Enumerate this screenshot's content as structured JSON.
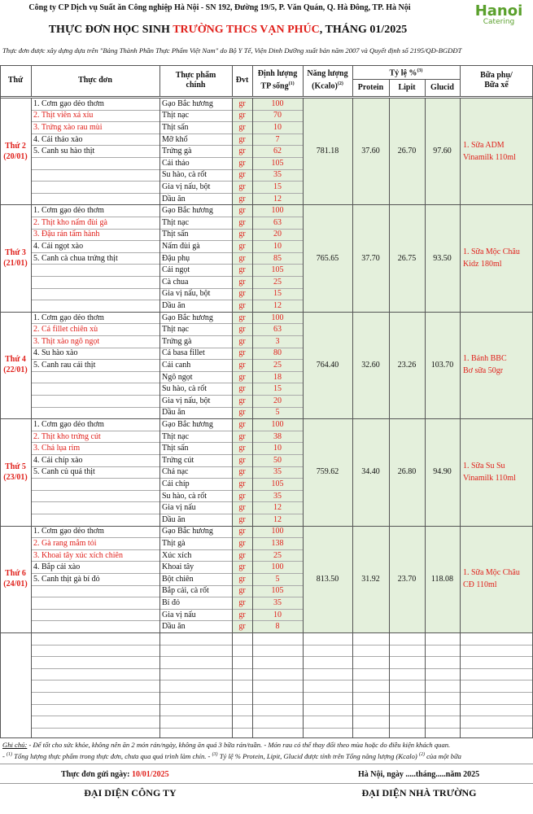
{
  "header": {
    "company": "Công ty CP Dịch vụ Suất ăn Công nghiệp Hà Nội - SN 192, Đường 19/5, P. Văn Quán, Q. Hà Đông, TP. Hà Nội",
    "logo_main": "Hanoi",
    "logo_sub": "Catering",
    "title_prefix": "THỰC ĐƠN HỌC SINH ",
    "school": "TRƯỜNG THCS VẠN PHÚC",
    "title_suffix": ", THÁNG 01/2025",
    "basis": "Thực đơn được xây dựng dựa trên \"Bảng Thành Phần Thực Phẩm Việt Nam\" do Bộ Y Tế, Viện Dinh Dưỡng xuất bản năm 2007 và Quyết định số 2195/QĐ-BGDĐT"
  },
  "highlight_color": "#e0201b",
  "table": {
    "columns": {
      "day": "Thứ",
      "menu": "Thực đơn",
      "food": [
        "Thực phẩm",
        "chính"
      ],
      "unit": "Đvt",
      "qty": {
        "text": [
          "Định lượng",
          "TP sống"
        ],
        "sup": "(1)"
      },
      "energy": {
        "text": [
          "Năng lượng",
          "(Kcalo)"
        ],
        "sup": "(2)"
      },
      "ratio": {
        "text": "Tỷ lệ %",
        "sup": "(3)"
      },
      "protein": "Protein",
      "lipit": "Lipit",
      "glucid": "Glucid",
      "snack": [
        "Bữa phụ/",
        "Bữa xế"
      ]
    },
    "days": [
      {
        "day": "Thứ 2",
        "date": "(20/01)",
        "dishes": [
          {
            "text": "1. Cơm gạo dẻo thơm",
            "highlight": false
          },
          {
            "text": "2. Thịt viên xá xíu",
            "highlight": true
          },
          {
            "text": "3. Trứng xào rau mùi",
            "highlight": true
          },
          {
            "text": "4. Cải thảo xào",
            "highlight": false
          },
          {
            "text": "5. Canh su hào thịt",
            "highlight": false
          }
        ],
        "ingredients": [
          [
            "Gạo Bắc hương",
            "gr",
            100
          ],
          [
            "Thịt nạc",
            "gr",
            70
          ],
          [
            "Thịt sấn",
            "gr",
            10
          ],
          [
            "Mỡ khổ",
            "gr",
            7
          ],
          [
            "Trứng gà",
            "gr",
            62
          ],
          [
            "Cải thảo",
            "gr",
            105
          ],
          [
            "Su hào, cà rốt",
            "gr",
            35
          ],
          [
            "Gia vị nấu, bột",
            "gr",
            15
          ],
          [
            "Dầu ăn",
            "gr",
            12
          ]
        ],
        "energy": "781.18",
        "protein": "37.60",
        "lipit": "26.70",
        "glucid": "97.60",
        "snack": [
          "1. Sữa ADM",
          "Vinamilk 110ml"
        ]
      },
      {
        "day": "Thứ 3",
        "date": "(21/01)",
        "dishes": [
          {
            "text": "1. Cơm gạo dẻo thơm",
            "highlight": false
          },
          {
            "text": "2. Thịt kho nấm đùi gà",
            "highlight": true
          },
          {
            "text": "3. Đậu rán tẩm hành",
            "highlight": true
          },
          {
            "text": "4. Cải ngọt xào",
            "highlight": false
          },
          {
            "text": "5. Canh cà chua trứng thịt",
            "highlight": false
          }
        ],
        "ingredients": [
          [
            "Gạo Bắc hương",
            "gr",
            100
          ],
          [
            "Thịt nạc",
            "gr",
            63
          ],
          [
            "Thịt sấn",
            "gr",
            20
          ],
          [
            "Nấm đùi gà",
            "gr",
            10
          ],
          [
            "Đậu phụ",
            "gr",
            85
          ],
          [
            "Cải ngọt",
            "gr",
            105
          ],
          [
            "Cà chua",
            "gr",
            25
          ],
          [
            "Gia vị nấu, bột",
            "gr",
            15
          ],
          [
            "Dầu ăn",
            "gr",
            12
          ]
        ],
        "energy": "765.65",
        "protein": "37.70",
        "lipit": "26.75",
        "glucid": "93.50",
        "snack": [
          "1. Sữa Mộc Châu",
          "Kidz 180ml"
        ]
      },
      {
        "day": "Thứ 4",
        "date": "(22/01)",
        "dishes": [
          {
            "text": "1. Cơm gạo dẻo thơm",
            "highlight": false
          },
          {
            "text": "2. Cá fillet chiên xù",
            "highlight": true
          },
          {
            "text": "3. Thịt xào ngô ngọt",
            "highlight": true
          },
          {
            "text": "4. Su hào xào",
            "highlight": false
          },
          {
            "text": "5. Canh rau cải thịt",
            "highlight": false
          }
        ],
        "ingredients": [
          [
            "Gạo Bắc hương",
            "gr",
            100
          ],
          [
            "Thịt nạc",
            "gr",
            63
          ],
          [
            "Trứng gà",
            "gr",
            3
          ],
          [
            "Cá basa fillet",
            "gr",
            80
          ],
          [
            "Cải canh",
            "gr",
            25
          ],
          [
            "Ngô ngọt",
            "gr",
            18
          ],
          [
            "Su hào, cà rốt",
            "gr",
            15
          ],
          [
            "Gia vị nấu, bột",
            "gr",
            20
          ],
          [
            "Dầu ăn",
            "gr",
            5
          ]
        ],
        "energy": "764.40",
        "protein": "32.60",
        "lipit": "23.26",
        "glucid": "103.70",
        "snack": [
          "1. Bánh BBC",
          "Bơ sữa 50gr"
        ]
      },
      {
        "day": "Thứ 5",
        "date": "(23/01)",
        "dishes": [
          {
            "text": "1. Cơm gạo dẻo thơm",
            "highlight": false
          },
          {
            "text": "2. Thịt kho trứng cút",
            "highlight": true
          },
          {
            "text": "3. Chả lụa rim",
            "highlight": true
          },
          {
            "text": "4. Cải chíp xào",
            "highlight": false
          },
          {
            "text": "5. Canh củ quả thịt",
            "highlight": false
          }
        ],
        "ingredients": [
          [
            "Gạo Bắc hương",
            "gr",
            100
          ],
          [
            "Thịt nạc",
            "gr",
            38
          ],
          [
            "Thịt sấn",
            "gr",
            10
          ],
          [
            "Trứng cút",
            "gr",
            50
          ],
          [
            "Chả nạc",
            "gr",
            35
          ],
          [
            "Cải chíp",
            "gr",
            105
          ],
          [
            "Su hào, cà rốt",
            "gr",
            35
          ],
          [
            "Gia vị nấu",
            "gr",
            12
          ],
          [
            "Dầu ăn",
            "gr",
            12
          ]
        ],
        "energy": "759.62",
        "protein": "34.40",
        "lipit": "26.80",
        "glucid": "94.90",
        "snack": [
          "1. Sữa Su Su",
          "Vinamilk 110ml"
        ]
      },
      {
        "day": "Thứ 6",
        "date": "(24/01)",
        "dishes": [
          {
            "text": "1. Cơm gạo dẻo thơm",
            "highlight": false
          },
          {
            "text": "2. Gà rang mắm tỏi",
            "highlight": true
          },
          {
            "text": "3. Khoai tây xúc xích chiên",
            "highlight": true
          },
          {
            "text": "4. Bắp cải xào",
            "highlight": false
          },
          {
            "text": "5. Canh thịt gà bí đỏ",
            "highlight": false
          }
        ],
        "ingredients": [
          [
            "Gạo Bắc hương",
            "gr",
            100
          ],
          [
            "Thịt gà",
            "gr",
            138
          ],
          [
            "Xúc xích",
            "gr",
            25
          ],
          [
            "Khoai tây",
            "gr",
            100
          ],
          [
            "Bột chiên",
            "gr",
            5
          ],
          [
            "Bắp cải, cà rốt",
            "gr",
            105
          ],
          [
            "Bí đỏ",
            "gr",
            35
          ],
          [
            "Gia vị nấu",
            "gr",
            10
          ],
          [
            "Dầu ăn",
            "gr",
            8
          ]
        ],
        "energy": "813.50",
        "protein": "31.92",
        "lipit": "23.70",
        "glucid": "118.08",
        "snack": [
          "1. Sữa Mộc Châu",
          "CĐ 110ml"
        ]
      }
    ]
  },
  "footer": {
    "note_label": "Ghi chú:",
    "note_1": " - Để tốt cho sức khỏe, không nên ăn 2 món rán/ngày, không ăn quá 3 bữa rán/tuần. - Món rau có thể thay đổi theo mùa hoặc do điều kiện khách quan.",
    "note_2": [
      {
        "text": "- ",
        "sup": false
      },
      {
        "text": "(1)",
        "sup": true
      },
      {
        "text": " Tổng lượng thực phẩm trong thực đơn, chưa qua quá trình làm chín. - ",
        "sup": false
      },
      {
        "text": "(3)",
        "sup": true
      },
      {
        "text": " Tỷ lệ % Protein, Lipit, Glucid được tính trên Tổng năng lượng (Kcalo) ",
        "sup": false
      },
      {
        "text": "(2)",
        "sup": true
      },
      {
        "text": " của một bữa",
        "sup": false
      }
    ],
    "sent_label": "Thực đơn gửi ngày: ",
    "sent_date": "10/01/2025",
    "place_date": "Hà Nội, ngày .....tháng.....năm 2025",
    "sign_company": "ĐẠI DIỆN CÔNG TY",
    "sign_school": "ĐẠI DIỆN NHÀ TRƯỜNG"
  }
}
